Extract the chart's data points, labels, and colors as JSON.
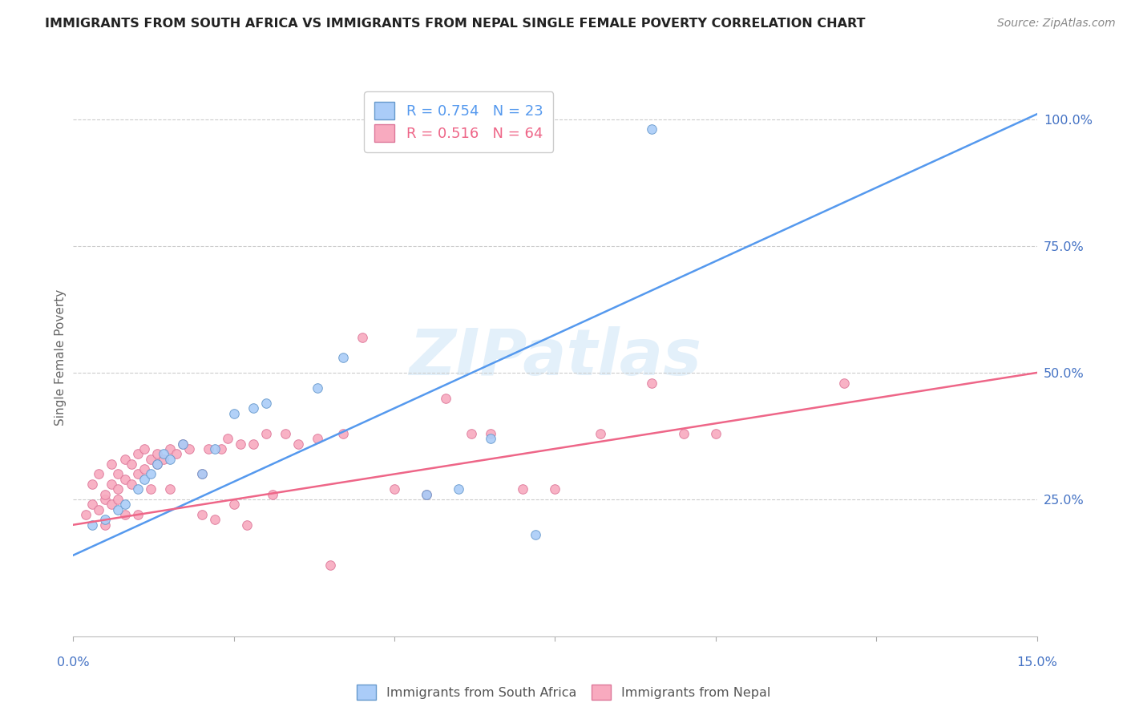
{
  "title": "IMMIGRANTS FROM SOUTH AFRICA VS IMMIGRANTS FROM NEPAL SINGLE FEMALE POVERTY CORRELATION CHART",
  "source": "Source: ZipAtlas.com",
  "ylabel": "Single Female Poverty",
  "ylabel_right_ticks": [
    "100.0%",
    "75.0%",
    "50.0%",
    "25.0%"
  ],
  "ylabel_right_vals": [
    1.0,
    0.75,
    0.5,
    0.25
  ],
  "xmin": 0.0,
  "xmax": 0.15,
  "ymin": -0.02,
  "ymax": 1.08,
  "legend1_label": "R = 0.754   N = 23",
  "legend2_label": "R = 0.516   N = 64",
  "watermark": "ZIPatlas",
  "sa_line_x0": 0.0,
  "sa_line_y0": 0.14,
  "sa_line_x1": 0.15,
  "sa_line_y1": 1.01,
  "nepal_line_x0": 0.0,
  "nepal_line_y0": 0.2,
  "nepal_line_x1": 0.15,
  "nepal_line_y1": 0.5,
  "south_africa_x": [
    0.003,
    0.005,
    0.007,
    0.008,
    0.01,
    0.011,
    0.012,
    0.013,
    0.014,
    0.015,
    0.017,
    0.02,
    0.022,
    0.025,
    0.028,
    0.03,
    0.038,
    0.042,
    0.055,
    0.06,
    0.065,
    0.072,
    0.09
  ],
  "south_africa_y": [
    0.2,
    0.21,
    0.23,
    0.24,
    0.27,
    0.29,
    0.3,
    0.32,
    0.34,
    0.33,
    0.36,
    0.3,
    0.35,
    0.42,
    0.43,
    0.44,
    0.47,
    0.53,
    0.26,
    0.27,
    0.37,
    0.18,
    0.98
  ],
  "nepal_x": [
    0.002,
    0.003,
    0.003,
    0.004,
    0.004,
    0.005,
    0.005,
    0.005,
    0.006,
    0.006,
    0.006,
    0.007,
    0.007,
    0.007,
    0.008,
    0.008,
    0.008,
    0.009,
    0.009,
    0.01,
    0.01,
    0.01,
    0.011,
    0.011,
    0.012,
    0.012,
    0.013,
    0.013,
    0.014,
    0.015,
    0.015,
    0.016,
    0.017,
    0.018,
    0.02,
    0.02,
    0.021,
    0.022,
    0.023,
    0.024,
    0.025,
    0.026,
    0.027,
    0.028,
    0.03,
    0.031,
    0.033,
    0.035,
    0.038,
    0.04,
    0.042,
    0.045,
    0.05,
    0.055,
    0.058,
    0.062,
    0.065,
    0.07,
    0.075,
    0.082,
    0.09,
    0.095,
    0.1,
    0.12
  ],
  "nepal_y": [
    0.22,
    0.24,
    0.28,
    0.23,
    0.3,
    0.25,
    0.2,
    0.26,
    0.24,
    0.28,
    0.32,
    0.25,
    0.27,
    0.3,
    0.22,
    0.29,
    0.33,
    0.28,
    0.32,
    0.3,
    0.22,
    0.34,
    0.31,
    0.35,
    0.27,
    0.33,
    0.34,
    0.32,
    0.33,
    0.35,
    0.27,
    0.34,
    0.36,
    0.35,
    0.22,
    0.3,
    0.35,
    0.21,
    0.35,
    0.37,
    0.24,
    0.36,
    0.2,
    0.36,
    0.38,
    0.26,
    0.38,
    0.36,
    0.37,
    0.12,
    0.38,
    0.57,
    0.27,
    0.26,
    0.45,
    0.38,
    0.38,
    0.27,
    0.27,
    0.38,
    0.48,
    0.38,
    0.38,
    0.48
  ],
  "scatter_size": 70,
  "line_color_sa": "#5599ee",
  "line_color_nepal": "#ee6688",
  "scatter_color_sa": "#aaccf8",
  "scatter_color_nepal": "#f8aabf",
  "scatter_edge_sa": "#6699cc",
  "scatter_edge_nepal": "#dd7799",
  "grid_color": "#cccccc",
  "title_color": "#222222",
  "source_color": "#888888",
  "axis_label_color": "#4472c4",
  "ylabel_color": "#666666"
}
